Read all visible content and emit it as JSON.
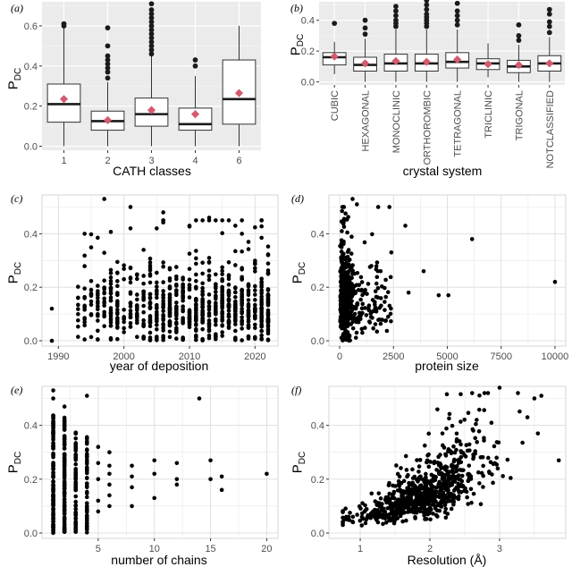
{
  "chart_data": [
    {
      "panel": "(a)",
      "type": "box",
      "xlabel": "CATH classes",
      "ylabel_main": "P",
      "ylabel_sub": "DC",
      "ylim": [
        -0.02,
        0.72
      ],
      "yticks": [
        "0.0",
        "0.2",
        "0.4",
        "0.6"
      ],
      "categories": [
        "1",
        "2",
        "3",
        "4",
        "6"
      ],
      "boxes": [
        {
          "q1": 0.12,
          "median": 0.21,
          "q3": 0.31,
          "lo": 0.0,
          "hi": 0.59,
          "mean": 0.235,
          "outliers": [
            0.6,
            0.61
          ]
        },
        {
          "q1": 0.08,
          "median": 0.125,
          "q3": 0.175,
          "lo": 0.0,
          "hi": 0.32,
          "mean": 0.13,
          "outliers": [
            0.34,
            0.37,
            0.39,
            0.41,
            0.43,
            0.45,
            0.5,
            0.59
          ]
        },
        {
          "q1": 0.1,
          "median": 0.16,
          "q3": 0.24,
          "lo": 0.0,
          "hi": 0.45,
          "mean": 0.18,
          "outliers": [
            0.46,
            0.48,
            0.5,
            0.52,
            0.54,
            0.56,
            0.58,
            0.6,
            0.62,
            0.64,
            0.66,
            0.68,
            0.71
          ]
        },
        {
          "q1": 0.08,
          "median": 0.11,
          "q3": 0.19,
          "lo": 0.0,
          "hi": 0.35,
          "mean": 0.16,
          "outliers": [
            0.4,
            0.43
          ]
        },
        {
          "q1": 0.11,
          "median": 0.235,
          "q3": 0.43,
          "lo": 0.0,
          "hi": 0.6,
          "mean": 0.265,
          "outliers": []
        }
      ]
    },
    {
      "panel": "(b)",
      "type": "box",
      "xlabel": "crystal system",
      "ylabel_main": "P",
      "ylabel_sub": "DC",
      "ylim": [
        -0.02,
        0.52
      ],
      "yticks": [
        "0.0",
        "0.2",
        "0.4"
      ],
      "categories": [
        "CUBIC",
        "HEXAGONAL",
        "MONOCLINIC",
        "ORTHOROMBIC",
        "TETRAGONAL",
        "TRICLINIC",
        "TRIGONAL",
        "NOTCLASSIFIED"
      ],
      "boxes": [
        {
          "q1": 0.11,
          "median": 0.16,
          "q3": 0.19,
          "lo": 0.05,
          "hi": 0.26,
          "mean": 0.165,
          "outliers": [
            0.38
          ]
        },
        {
          "q1": 0.07,
          "median": 0.11,
          "q3": 0.16,
          "lo": 0.0,
          "hi": 0.28,
          "mean": 0.12,
          "outliers": [
            0.31,
            0.35,
            0.4
          ]
        },
        {
          "q1": 0.07,
          "median": 0.12,
          "q3": 0.18,
          "lo": 0.0,
          "hi": 0.34,
          "mean": 0.135,
          "outliers": [
            0.36,
            0.38,
            0.4,
            0.43,
            0.46,
            0.49
          ]
        },
        {
          "q1": 0.07,
          "median": 0.12,
          "q3": 0.18,
          "lo": 0.0,
          "hi": 0.34,
          "mean": 0.13,
          "outliers": [
            0.36,
            0.38,
            0.4,
            0.42,
            0.44,
            0.47,
            0.5,
            0.53
          ]
        },
        {
          "q1": 0.09,
          "median": 0.13,
          "q3": 0.19,
          "lo": 0.0,
          "hi": 0.34,
          "mean": 0.145,
          "outliers": [
            0.37,
            0.4,
            0.43,
            0.46,
            0.51
          ]
        },
        {
          "q1": 0.08,
          "median": 0.12,
          "q3": 0.15,
          "lo": 0.03,
          "hi": 0.25,
          "mean": 0.115,
          "outliers": []
        },
        {
          "q1": 0.06,
          "median": 0.1,
          "q3": 0.14,
          "lo": 0.0,
          "hi": 0.24,
          "mean": 0.11,
          "outliers": [
            0.27,
            0.3,
            0.37
          ]
        },
        {
          "q1": 0.07,
          "median": 0.12,
          "q3": 0.17,
          "lo": 0.0,
          "hi": 0.29,
          "mean": 0.12,
          "outliers": [
            0.32,
            0.36,
            0.39,
            0.44,
            0.47
          ]
        }
      ]
    },
    {
      "panel": "(c)",
      "type": "scatter",
      "xlabel": "year of deposition",
      "ylabel_main": "P",
      "ylabel_sub": "DC",
      "xlim": [
        1987.5,
        2023.5
      ],
      "ylim": [
        -0.02,
        0.545
      ],
      "xticks": [
        1990,
        2000,
        2010,
        2020
      ],
      "yticks": [
        0.0,
        0.2,
        0.4
      ],
      "seed": 11,
      "n": 820,
      "points": [
        [
          1989,
          0.12
        ],
        [
          1989,
          0.0
        ],
        [
          1997,
          0.53
        ],
        [
          2001,
          0.5
        ],
        [
          2001,
          0.42
        ],
        [
          2006,
          0.48
        ],
        [
          2010,
          0.43
        ],
        [
          2018,
          0.4
        ],
        [
          2022,
          0.32
        ],
        [
          1994,
          0.4
        ],
        [
          2005,
          0.42
        ],
        [
          2013,
          0.46
        ],
        [
          2016,
          0.45
        ]
      ]
    },
    {
      "panel": "(d)",
      "type": "scatter",
      "xlabel": "protein size",
      "ylabel_main": "P",
      "ylabel_sub": "DC",
      "xlim": [
        -500,
        10500
      ],
      "ylim": [
        -0.02,
        0.545
      ],
      "xticks": [
        0,
        2500,
        5000,
        7500,
        10000
      ],
      "yticks": [
        0.0,
        0.2,
        0.4
      ],
      "seed": 23,
      "n": 700,
      "points": [
        [
          3050,
          0.43
        ],
        [
          3200,
          0.18
        ],
        [
          3900,
          0.26
        ],
        [
          4600,
          0.17
        ],
        [
          5050,
          0.17
        ],
        [
          6150,
          0.38
        ],
        [
          10000,
          0.22
        ],
        [
          600,
          0.53
        ],
        [
          800,
          0.51
        ],
        [
          1900,
          0.26
        ],
        [
          2400,
          0.33
        ]
      ]
    },
    {
      "panel": "(e)",
      "type": "scatter",
      "xlabel": "number of chains",
      "ylabel_main": "P",
      "ylabel_sub": "DC",
      "xlim": [
        0.0,
        21.0
      ],
      "ylim": [
        -0.02,
        0.545
      ],
      "xticks": [
        5,
        10,
        15,
        20
      ],
      "yticks": [
        0.0,
        0.2,
        0.4
      ],
      "seed": 37,
      "points": [
        [
          1,
          0.53
        ],
        [
          1,
          0.5
        ],
        [
          2,
          0.47
        ],
        [
          4,
          0.51
        ],
        [
          14,
          0.5
        ],
        [
          20,
          0.22
        ],
        [
          15,
          0.27
        ],
        [
          15,
          0.2
        ],
        [
          16,
          0.16
        ],
        [
          16,
          0.21
        ],
        [
          12,
          0.26
        ],
        [
          12,
          0.2
        ],
        [
          12,
          0.18
        ],
        [
          10,
          0.27
        ],
        [
          10,
          0.22
        ],
        [
          10,
          0.13
        ],
        [
          8,
          0.25
        ],
        [
          8,
          0.21
        ],
        [
          8,
          0.17
        ],
        [
          8,
          0.1
        ],
        [
          6,
          0.3
        ],
        [
          6,
          0.25
        ],
        [
          6,
          0.22
        ],
        [
          6,
          0.18
        ],
        [
          6,
          0.14
        ],
        [
          6,
          0.1
        ],
        [
          5,
          0.32
        ],
        [
          5,
          0.26
        ],
        [
          5,
          0.2
        ],
        [
          5,
          0.12
        ],
        [
          5,
          0.08
        ]
      ]
    },
    {
      "panel": "(f)",
      "type": "scatter",
      "xlabel": "Resolution (Å)",
      "ylabel_main": "P",
      "ylabel_sub": "DC",
      "xlim": [
        0.55,
        3.95
      ],
      "ylim": [
        -0.02,
        0.545
      ],
      "xticks": [
        1,
        2,
        3
      ],
      "yticks": [
        0.0,
        0.2,
        0.4
      ],
      "seed": 53,
      "n": 780,
      "points": [
        [
          0.75,
          0.03
        ],
        [
          0.8,
          0.06
        ],
        [
          3.5,
          0.5
        ],
        [
          3.6,
          0.51
        ],
        [
          3.85,
          0.27
        ],
        [
          3.0,
          0.54
        ],
        [
          3.4,
          0.43
        ],
        [
          3.55,
          0.37
        ]
      ]
    }
  ]
}
